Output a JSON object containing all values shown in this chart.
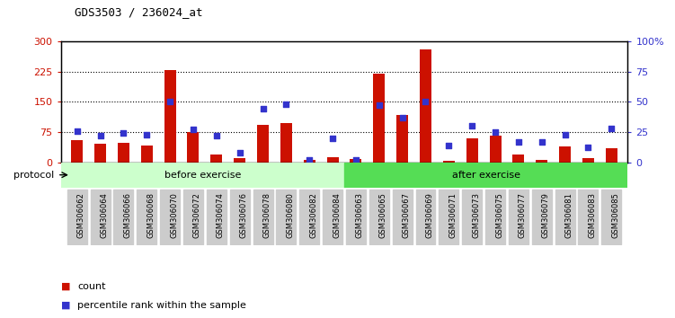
{
  "title": "GDS3503 / 236024_at",
  "samples": [
    "GSM306062",
    "GSM306064",
    "GSM306066",
    "GSM306068",
    "GSM306070",
    "GSM306072",
    "GSM306074",
    "GSM306076",
    "GSM306078",
    "GSM306080",
    "GSM306082",
    "GSM306084",
    "GSM306063",
    "GSM306065",
    "GSM306067",
    "GSM306069",
    "GSM306071",
    "GSM306073",
    "GSM306075",
    "GSM306077",
    "GSM306079",
    "GSM306081",
    "GSM306083",
    "GSM306085"
  ],
  "count_values": [
    55,
    45,
    48,
    42,
    228,
    75,
    18,
    10,
    92,
    97,
    5,
    12,
    8,
    220,
    118,
    280,
    3,
    60,
    65,
    18,
    5,
    40,
    10,
    35
  ],
  "percentile_values": [
    26,
    22,
    24,
    23,
    50,
    27,
    22,
    8,
    44,
    48,
    2,
    20,
    2,
    47,
    37,
    50,
    14,
    30,
    25,
    17,
    17,
    23,
    12,
    28
  ],
  "before_exercise_count": 12,
  "after_exercise_count": 12,
  "bar_color": "#cc1100",
  "dot_color": "#3333cc",
  "left_axis_color": "#cc1100",
  "right_axis_color": "#3333cc",
  "left_ylim": [
    0,
    300
  ],
  "right_ylim": [
    0,
    100
  ],
  "left_yticks": [
    0,
    75,
    150,
    225,
    300
  ],
  "right_yticks": [
    0,
    25,
    50,
    75,
    100
  ],
  "right_yticklabels": [
    "0",
    "25",
    "50",
    "75",
    "100%"
  ],
  "bg_color": "#ffffff",
  "plot_bg": "#ffffff",
  "before_color": "#ccffcc",
  "after_color": "#55dd55",
  "protocol_label": "protocol",
  "before_label": "before exercise",
  "after_label": "after exercise",
  "legend_count": "count",
  "legend_pct": "percentile rank within the sample"
}
